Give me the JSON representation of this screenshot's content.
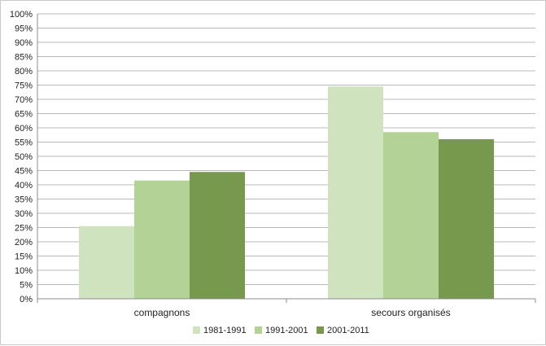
{
  "chart_data": {
    "type": "bar",
    "categories": [
      "compagnons",
      "secours organisés"
    ],
    "series": [
      {
        "name": "1981-1991",
        "values": [
          25.5,
          74.5
        ],
        "color": "#cfe3bf"
      },
      {
        "name": "1991-2001",
        "values": [
          41.5,
          58.5
        ],
        "color": "#b3d396"
      },
      {
        "name": "2001-2011",
        "values": [
          44.5,
          56
        ],
        "color": "#76994d"
      }
    ],
    "ylim": [
      0,
      100
    ],
    "yticks": [
      "0%",
      "5%",
      "10%",
      "15%",
      "20%",
      "25%",
      "30%",
      "35%",
      "40%",
      "45%",
      "50%",
      "55%",
      "60%",
      "65%",
      "70%",
      "75%",
      "80%",
      "85%",
      "90%",
      "95%",
      "100%"
    ],
    "title": "",
    "xlabel": "",
    "ylabel": "",
    "grid": true,
    "legend_position": "bottom",
    "gridline_color": "#b9b9b9"
  }
}
